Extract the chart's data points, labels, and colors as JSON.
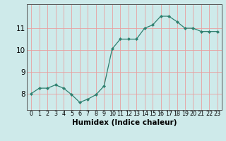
{
  "x": [
    0,
    1,
    2,
    3,
    4,
    5,
    6,
    7,
    8,
    9,
    10,
    11,
    12,
    13,
    14,
    15,
    16,
    17,
    18,
    19,
    20,
    21,
    22,
    23
  ],
  "y": [
    8.0,
    8.25,
    8.25,
    8.4,
    8.25,
    7.95,
    7.6,
    7.75,
    7.95,
    8.35,
    10.05,
    10.5,
    10.5,
    10.5,
    11.0,
    11.15,
    11.55,
    11.55,
    11.3,
    11.0,
    11.0,
    10.85,
    10.85,
    10.85
  ],
  "line_color": "#2e7f6e",
  "marker": "D",
  "marker_size": 2.2,
  "bg_color": "#ceeaea",
  "grid_color": "#e8a0a0",
  "xlabel": "Humidex (Indice chaleur)",
  "xlim": [
    -0.5,
    23.5
  ],
  "ylim": [
    7.25,
    12.1
  ],
  "yticks": [
    8,
    9,
    10,
    11
  ],
  "xtick_labels": [
    "0",
    "1",
    "2",
    "3",
    "4",
    "5",
    "6",
    "7",
    "8",
    "9",
    "10",
    "11",
    "12",
    "13",
    "14",
    "15",
    "16",
    "17",
    "18",
    "19",
    "20",
    "21",
    "22",
    "23"
  ],
  "xlabel_fontsize": 7.5,
  "ytick_fontsize": 7.5,
  "xtick_fontsize": 5.8,
  "spine_color": "#555555"
}
